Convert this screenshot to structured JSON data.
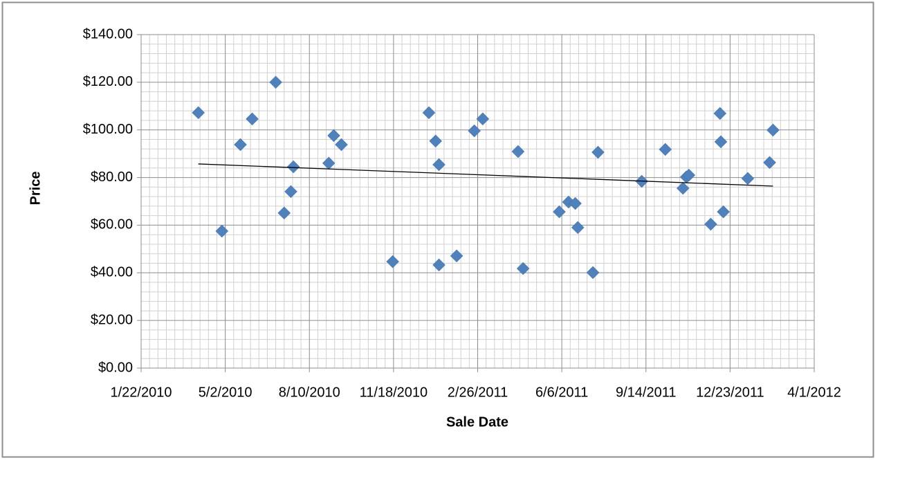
{
  "chart_data": {
    "type": "scatter",
    "x_label": "Sale Date",
    "y_label": "Price",
    "x": [
      40268,
      40296,
      40318,
      40332,
      40360,
      40370,
      40378,
      40381,
      40423,
      40429,
      40438,
      40499,
      40542,
      40550,
      40554,
      40554,
      40575,
      40596,
      40606,
      40648,
      40654,
      40697,
      40708,
      40716,
      40719,
      40737,
      40743,
      40795,
      40823,
      40844,
      40848,
      40851,
      40877,
      40888,
      40889,
      40892,
      40921,
      40947,
      40951
    ],
    "values": [
      107.2,
      57.5,
      93.8,
      104.6,
      120,
      65.1,
      74.1,
      84.5,
      86,
      97.6,
      93.8,
      44.7,
      107.2,
      95.3,
      85.4,
      43.3,
      47.1,
      99.6,
      104.6,
      90.9,
      41.8,
      65.6,
      69.7,
      69.1,
      59,
      40.1,
      90.6,
      78.4,
      91.8,
      75.5,
      80.2,
      81,
      60.4,
      106.9,
      95,
      65.6,
      79.6,
      86.3,
      99.9
    ],
    "color": "#4f81bd",
    "trendline": {
      "x": [
        40268,
        40951
      ],
      "values": [
        85.7,
        76.4
      ],
      "color": "#000000"
    },
    "xlim": [
      40200,
      41000
    ],
    "xticks": [
      {
        "value": 40200,
        "label": "1/22/2010"
      },
      {
        "value": 40300,
        "label": "5/2/2010"
      },
      {
        "value": 40400,
        "label": "8/10/2010"
      },
      {
        "value": 40500,
        "label": "11/18/2010"
      },
      {
        "value": 40600,
        "label": "2/26/2011"
      },
      {
        "value": 40700,
        "label": "6/6/2011"
      },
      {
        "value": 40800,
        "label": "9/14/2011"
      },
      {
        "value": 40900,
        "label": "12/23/2011"
      },
      {
        "value": 41000,
        "label": "4/1/2012"
      }
    ],
    "ylim": [
      0,
      140
    ],
    "yticks": [
      {
        "value": 0,
        "label": "$0.00"
      },
      {
        "value": 20,
        "label": "$20.00"
      },
      {
        "value": 40,
        "label": "$40.00"
      },
      {
        "value": 60,
        "label": "$60.00"
      },
      {
        "value": 80,
        "label": "$80.00"
      },
      {
        "value": 100,
        "label": "$100.00"
      },
      {
        "value": 120,
        "label": "$120.00"
      },
      {
        "value": 140,
        "label": "$140.00"
      }
    ],
    "grid": true,
    "minor_grid": true
  }
}
